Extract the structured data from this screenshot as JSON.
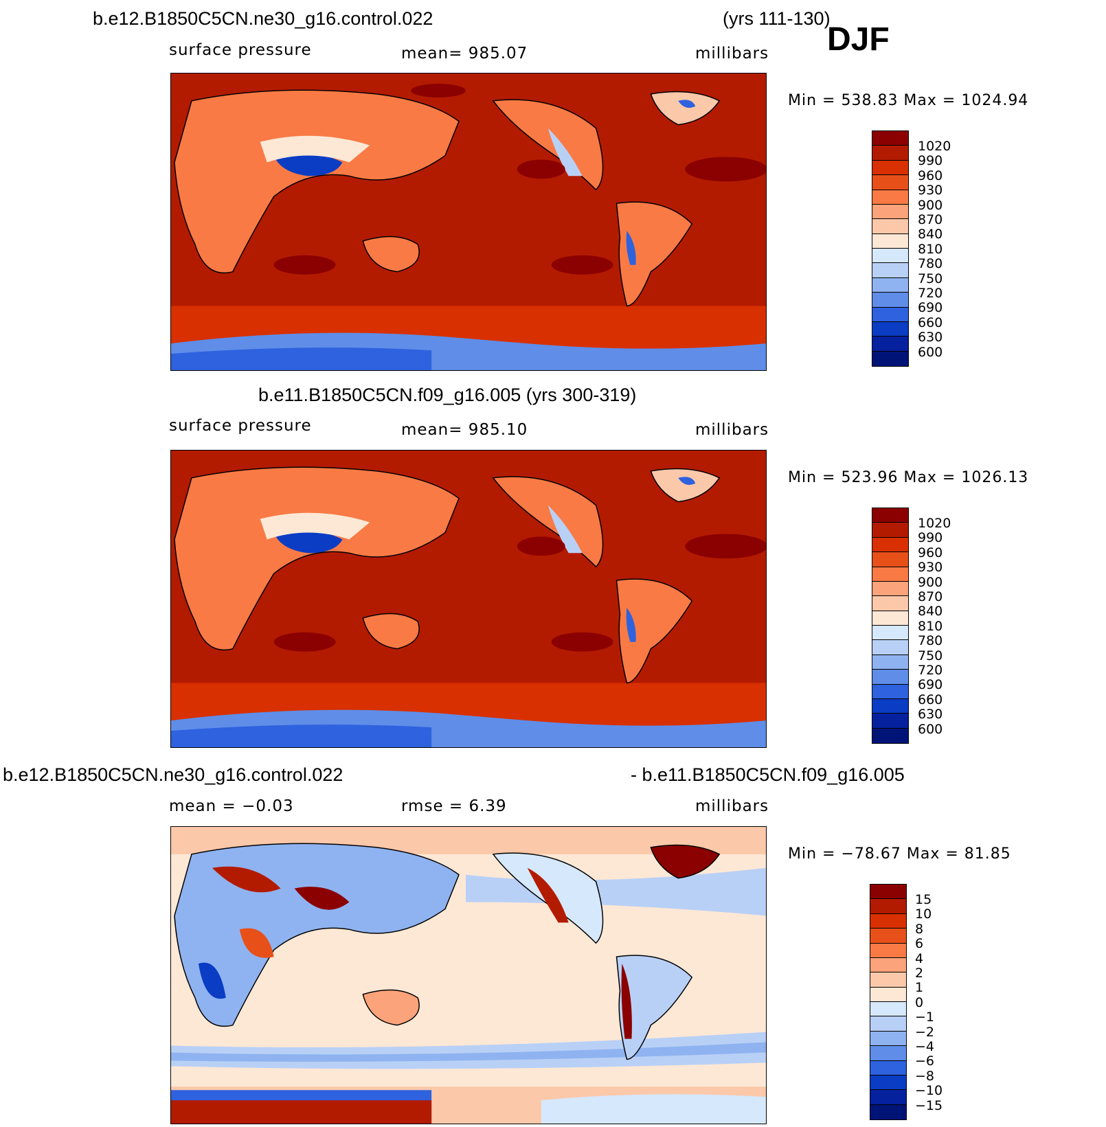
{
  "season": "DJF",
  "panel1": {
    "title_left": "b.e12.B1850C5CN.ne30_g16.control.022",
    "title_right": "(yrs 111-130)",
    "variable": "surface pressure",
    "mean": "mean=  985.07",
    "units": "millibars",
    "minmax": "Min  =  538.83  Max  =  1024.94"
  },
  "panel2": {
    "title": "b.e11.B1850C5CN.f09_g16.005 (yrs 300-319)",
    "variable": "surface pressure",
    "mean": "mean=  985.10",
    "units": "millibars",
    "minmax": "Min  =  523.96  Max  =  1026.13"
  },
  "panel3": {
    "title_left": "b.e12.B1850C5CN.ne30_g16.control.022",
    "title_right": "- b.e11.B1850C5CN.f09_g16.005",
    "mean": "mean  =    −0.03",
    "rmse": "rmse  =     6.39",
    "units": "millibars",
    "minmax": "Min  =  −78.67  Max  =    81.85"
  },
  "legend_pressure": {
    "labels": [
      "1020",
      "990",
      "960",
      "930",
      "900",
      "870",
      "840",
      "810",
      "780",
      "750",
      "720",
      "690",
      "660",
      "630",
      "600"
    ],
    "colors": [
      "#8b0000",
      "#b31b00",
      "#d83000",
      "#e8501a",
      "#f97a45",
      "#fba37a",
      "#fcc8aa",
      "#fde8d6",
      "#d6e8fb",
      "#b9d0f6",
      "#8fb3f0",
      "#5f8de8",
      "#2e62de",
      "#0a3dc4",
      "#05219e",
      "#001478"
    ]
  },
  "legend_diff": {
    "labels": [
      "15",
      "10",
      "8",
      "6",
      "4",
      "2",
      "1",
      "0",
      "−1",
      "−2",
      "−4",
      "−6",
      "−8",
      "−10",
      "−15"
    ],
    "colors": [
      "#8b0000",
      "#b31b00",
      "#d83000",
      "#e8501a",
      "#f97a45",
      "#fba37a",
      "#fcc8aa",
      "#fde8d6",
      "#d6e8fb",
      "#b9d0f6",
      "#8fb3f0",
      "#5f8de8",
      "#2e62de",
      "#0a3dc4",
      "#05219e",
      "#001478"
    ]
  }
}
